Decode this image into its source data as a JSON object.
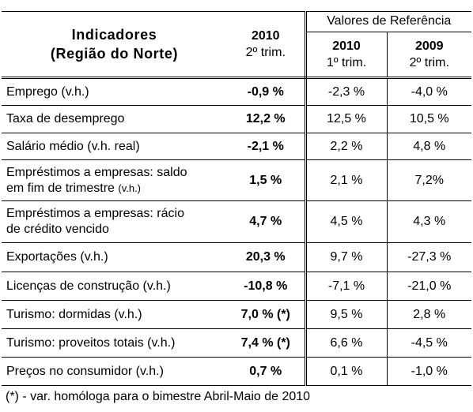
{
  "header": {
    "indicator_line1": "Indicadores",
    "indicator_line2": "(Região do Norte)",
    "current_year": "2010",
    "current_period": "2º trim.",
    "reference_title": "Valores de Referência",
    "ref1_year": "2010",
    "ref1_period": "1º trim.",
    "ref2_year": "2009",
    "ref2_period": "2º trim."
  },
  "rows": [
    {
      "label": "Emprego (v.h.)",
      "label2": "",
      "label2_small": "",
      "v2010_2t": "-0,9 %",
      "v2010_1t": "-2,3 %",
      "v2009_2t": "-4,0 %"
    },
    {
      "label": "Taxa de desemprego",
      "label2": "",
      "label2_small": "",
      "v2010_2t": "12,2 %",
      "v2010_1t": "12,5 %",
      "v2009_2t": "10,5 %"
    },
    {
      "label": "Salário médio (v.h. real)",
      "label2": "",
      "label2_small": "",
      "v2010_2t": "-2,1 %",
      "v2010_1t": "2,2 %",
      "v2009_2t": "4,8 %"
    },
    {
      "label": "Empréstimos a empresas: saldo",
      "label2": "em fim de trimestre ",
      "label2_small": "(v.h.)",
      "v2010_2t": "1,5 %",
      "v2010_1t": "2,1 %",
      "v2009_2t": "7,2%"
    },
    {
      "label": "Empréstimos a empresas: rácio",
      "label2": "de crédito vencido",
      "label2_small": "",
      "v2010_2t": "4,7 %",
      "v2010_1t": "4,5 %",
      "v2009_2t": "4,3 %"
    },
    {
      "label": "Exportações (v.h.)",
      "label2": "",
      "label2_small": "",
      "v2010_2t": "20,3 %",
      "v2010_1t": "9,7 %",
      "v2009_2t": "-27,3 %"
    },
    {
      "label": "Licenças de construção (v.h.)",
      "label2": "",
      "label2_small": "",
      "v2010_2t": "-10,8 %",
      "v2010_1t": "-7,1 %",
      "v2009_2t": "-21,0 %"
    },
    {
      "label": "Turismo: dormidas (v.h.)",
      "label2": "",
      "label2_small": "",
      "v2010_2t": "7,0 % (*)",
      "v2010_1t": "9,5 %",
      "v2009_2t": "2,8 %"
    },
    {
      "label": "Turismo: proveitos totais (v.h.)",
      "label2": "",
      "label2_small": "",
      "v2010_2t": "7,4 % (*)",
      "v2010_1t": "6,6 %",
      "v2009_2t": "-4,5 %"
    },
    {
      "label": "Preços no consumidor (v.h.)",
      "label2": "",
      "label2_small": "",
      "v2010_2t": "0,7 %",
      "v2010_1t": "0,1 %",
      "v2009_2t": "-1,0 %"
    }
  ],
  "footnote": "(*) - var. homóloga para o bimestre Abril-Maio de 2010"
}
